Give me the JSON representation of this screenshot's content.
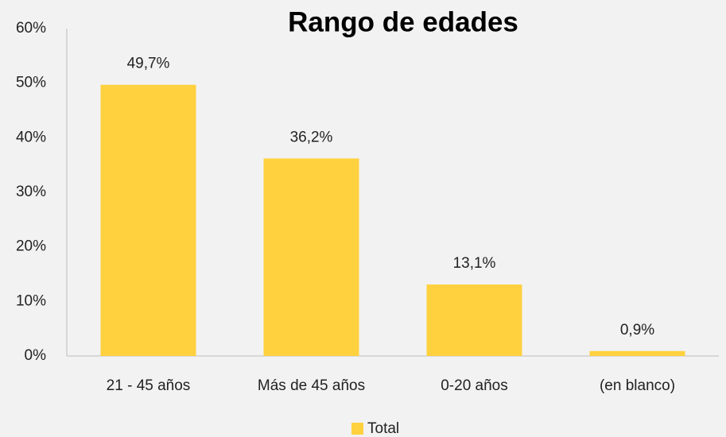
{
  "chart_data": {
    "type": "bar",
    "title": "Rango de edades",
    "categories": [
      "21 - 45 años",
      "Más de 45 años",
      "0-20 años",
      "(en blanco)"
    ],
    "series": [
      {
        "name": "Total",
        "color": "#ffd13f",
        "values": [
          49.7,
          36.2,
          13.1,
          0.9
        ],
        "value_labels": [
          "49,7%",
          "36,2%",
          "13,1%",
          "0,9%"
        ]
      }
    ],
    "ylim": [
      0,
      60
    ],
    "yticks": [
      {
        "value": 0,
        "label": "0%"
      },
      {
        "value": 10,
        "label": "10%"
      },
      {
        "value": 20,
        "label": "20%"
      },
      {
        "value": 30,
        "label": "30%"
      },
      {
        "value": 40,
        "label": "40%"
      },
      {
        "value": 50,
        "label": "50%"
      },
      {
        "value": 60,
        "label": "60%"
      }
    ],
    "grid": false,
    "legend": "bottom"
  }
}
